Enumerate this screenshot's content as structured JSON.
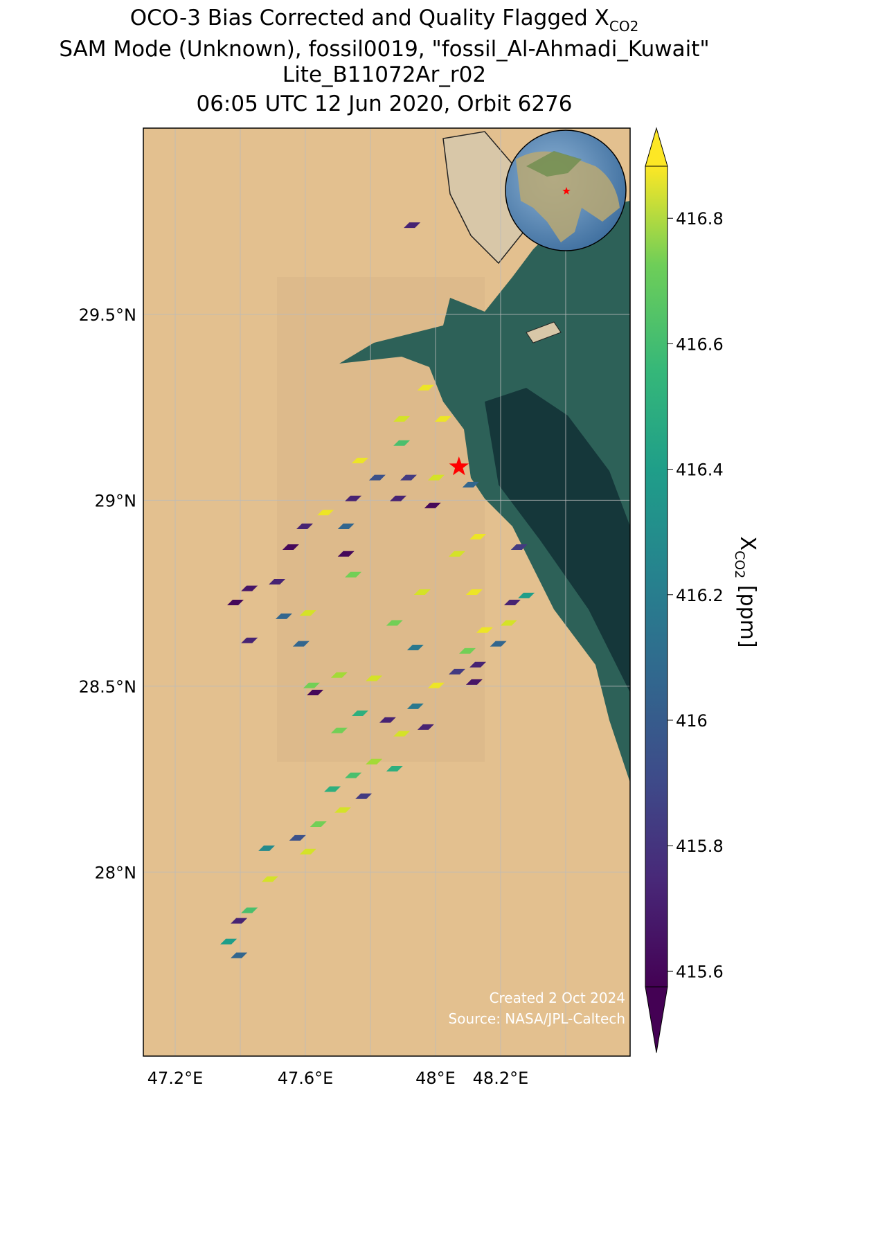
{
  "chart_data": {
    "type": "map",
    "title_lines": [
      "OCO-3 Bias Corrected and Quality Flagged X",
      "SAM Mode (Unknown), fossil0019, \"fossil_Al-Ahmadi_Kuwait\"",
      "Lite_B11072Ar_r02",
      "06:05 UTC 12 Jun 2020, Orbit 6276"
    ],
    "title_subscript": "CO2",
    "colorbar_label": {
      "main": "X",
      "subscript": "CO2",
      "unit": " [ppm]"
    },
    "credits": [
      "Created 2 Oct 2024",
      "Source: NASA/JPL-Caltech"
    ],
    "colormap": "viridis",
    "xlim": [
      47.102,
      48.598
    ],
    "ylim": [
      27.505,
      30.001
    ],
    "xticks": [
      {
        "value": 47.2,
        "label": "47.2°E"
      },
      {
        "value": 47.4,
        "label": null
      },
      {
        "value": 47.6,
        "label": "47.6°E"
      },
      {
        "value": 47.8,
        "label": null
      },
      {
        "value": 48.0,
        "label": "48°E"
      },
      {
        "value": 48.2,
        "label": "48.2°E"
      },
      {
        "value": 48.4,
        "label": null
      }
    ],
    "yticks": [
      {
        "value": 28.0,
        "label": "28°N"
      },
      {
        "value": 28.5,
        "label": "28.5°N"
      },
      {
        "value": 29.0,
        "label": "29°N"
      },
      {
        "value": 29.5,
        "label": "29.5°N"
      }
    ],
    "grid": true,
    "clim": [
      415.575,
      416.883
    ],
    "cticks": [
      415.6,
      415.8,
      416.0,
      416.2,
      416.4,
      416.6,
      416.8
    ],
    "marker": {
      "lon": 48.072,
      "lat": 29.09,
      "color": "#ff0000"
    },
    "x": [
      47.97,
      47.896,
      48.023,
      47.768,
      47.896,
      48.002,
      47.917,
      47.821,
      47.747,
      47.662,
      47.598,
      47.555,
      47.725,
      47.885,
      47.991,
      48.108,
      48.13,
      48.066,
      47.959,
      48.119,
      48.257,
      47.385,
      47.428,
      47.513,
      47.534,
      47.608,
      47.428,
      47.587,
      47.725,
      47.747,
      47.874,
      47.938,
      47.619,
      47.704,
      47.811,
      47.63,
      47.768,
      47.704,
      47.364,
      47.396,
      47.428,
      47.491,
      47.481,
      47.576,
      47.608,
      47.64,
      47.683,
      47.715,
      47.747,
      47.779,
      47.811,
      47.874,
      47.896,
      47.938,
      47.97,
      48.002,
      48.066,
      48.098,
      48.13,
      48.151,
      48.193,
      48.236,
      48.279,
      48.225,
      48.119,
      47.853,
      47.396,
      47.928
    ],
    "y": [
      29.303,
      29.219,
      29.219,
      29.107,
      29.154,
      29.061,
      29.061,
      29.061,
      29.005,
      28.967,
      28.93,
      28.874,
      28.93,
      29.005,
      28.986,
      29.042,
      28.902,
      28.856,
      28.753,
      28.753,
      28.874,
      28.725,
      28.763,
      28.781,
      28.688,
      28.697,
      28.623,
      28.614,
      28.856,
      28.8,
      28.67,
      28.604,
      28.502,
      28.53,
      28.521,
      28.483,
      28.427,
      28.381,
      27.813,
      27.869,
      27.897,
      27.981,
      28.064,
      28.092,
      28.055,
      28.129,
      28.223,
      28.167,
      28.26,
      28.204,
      28.297,
      28.278,
      28.372,
      28.446,
      28.39,
      28.502,
      28.539,
      28.595,
      28.558,
      28.651,
      28.614,
      28.725,
      28.744,
      28.67,
      28.511,
      28.409,
      27.776,
      29.74
    ],
    "values": [
      416.85,
      416.8,
      416.85,
      416.85,
      416.5,
      416.8,
      415.8,
      415.9,
      415.7,
      416.85,
      415.7,
      415.6,
      416.0,
      415.7,
      415.6,
      416.0,
      416.85,
      416.8,
      416.8,
      416.85,
      415.8,
      415.6,
      415.65,
      415.7,
      416.0,
      416.8,
      415.7,
      416.0,
      415.6,
      416.6,
      416.6,
      416.1,
      416.6,
      416.7,
      416.8,
      415.6,
      416.4,
      416.6,
      416.3,
      415.7,
      416.5,
      416.8,
      416.2,
      415.9,
      416.8,
      416.6,
      416.4,
      416.8,
      416.5,
      415.8,
      416.7,
      416.4,
      416.8,
      416.1,
      415.7,
      416.85,
      415.8,
      416.6,
      415.7,
      416.85,
      416.0,
      415.7,
      416.3,
      416.8,
      415.65,
      415.7,
      416.0,
      415.7
    ]
  }
}
